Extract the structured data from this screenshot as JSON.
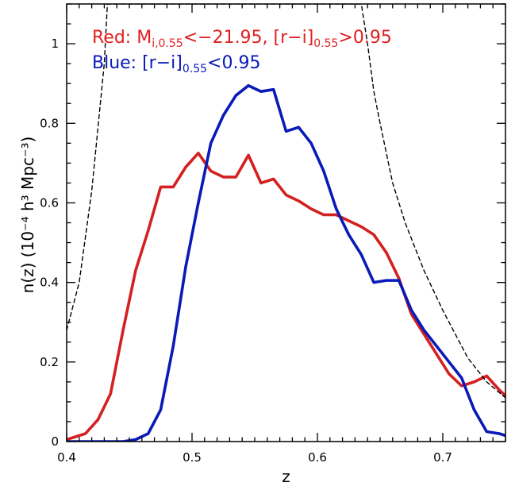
{
  "chart_data": {
    "type": "line",
    "xlabel": "z",
    "ylabel": "n(z) (10⁻⁴ h³ Mpc⁻³)",
    "xlim": [
      0.4,
      0.75
    ],
    "ylim": [
      0,
      1.1
    ],
    "x_ticks": [
      {
        "value": 0.4,
        "label": "0.4"
      },
      {
        "value": 0.5,
        "label": "0.5"
      },
      {
        "value": 0.6,
        "label": "0.6"
      },
      {
        "value": 0.7,
        "label": "0.7"
      }
    ],
    "y_ticks": [
      {
        "value": 0,
        "label": "0"
      },
      {
        "value": 0.2,
        "label": "0.2"
      },
      {
        "value": 0.4,
        "label": "0.4"
      },
      {
        "value": 0.6,
        "label": "0.6"
      },
      {
        "value": 0.8,
        "label": "0.8"
      },
      {
        "value": 1.0,
        "label": "1"
      }
    ],
    "legend": [
      {
        "color": "#e02020",
        "parts": [
          {
            "text": "Red: M",
            "sub": false
          },
          {
            "text": "i,0.55",
            "sub": true
          },
          {
            "text": "<−21.95, [r−i]",
            "sub": false
          },
          {
            "text": "0.55",
            "sub": true
          },
          {
            "text": ">0.95",
            "sub": false
          }
        ]
      },
      {
        "color": "#0a1ab8",
        "parts": [
          {
            "text": "Blue: [r−i]",
            "sub": false
          },
          {
            "text": "0.55",
            "sub": true
          },
          {
            "text": "<0.95",
            "sub": false
          }
        ]
      }
    ],
    "series": [
      {
        "color": "#d42020",
        "style": "solid",
        "x": [
          0.4,
          0.415,
          0.425,
          0.435,
          0.445,
          0.455,
          0.465,
          0.475,
          0.485,
          0.495,
          0.505,
          0.515,
          0.525,
          0.535,
          0.545,
          0.555,
          0.565,
          0.575,
          0.585,
          0.595,
          0.605,
          0.615,
          0.625,
          0.635,
          0.645,
          0.655,
          0.665,
          0.675,
          0.685,
          0.695,
          0.705,
          0.715,
          0.725,
          0.735,
          0.745,
          0.75
        ],
        "y": [
          0.005,
          0.02,
          0.055,
          0.12,
          0.28,
          0.43,
          0.53,
          0.64,
          0.64,
          0.69,
          0.725,
          0.68,
          0.665,
          0.665,
          0.72,
          0.65,
          0.66,
          0.62,
          0.605,
          0.585,
          0.57,
          0.57,
          0.555,
          0.54,
          0.52,
          0.475,
          0.41,
          0.32,
          0.27,
          0.22,
          0.17,
          0.14,
          0.15,
          0.165,
          0.13,
          0.115
        ]
      },
      {
        "color": "#0a1ab8",
        "style": "solid",
        "x": [
          0.4,
          0.415,
          0.425,
          0.435,
          0.445,
          0.455,
          0.465,
          0.475,
          0.485,
          0.495,
          0.505,
          0.515,
          0.525,
          0.535,
          0.545,
          0.555,
          0.565,
          0.575,
          0.585,
          0.595,
          0.605,
          0.615,
          0.625,
          0.635,
          0.645,
          0.655,
          0.665,
          0.675,
          0.685,
          0.695,
          0.705,
          0.715,
          0.725,
          0.735,
          0.745,
          0.75
        ],
        "y": [
          0.0,
          0.0,
          0.0,
          0.0,
          0.0,
          0.005,
          0.02,
          0.08,
          0.24,
          0.44,
          0.6,
          0.75,
          0.82,
          0.87,
          0.895,
          0.88,
          0.885,
          0.78,
          0.79,
          0.75,
          0.68,
          0.585,
          0.52,
          0.47,
          0.4,
          0.405,
          0.405,
          0.33,
          0.28,
          0.24,
          0.2,
          0.16,
          0.08,
          0.025,
          0.02,
          0.015
        ]
      },
      {
        "color": "#000000",
        "style": "dashed",
        "x": [
          0.4,
          0.41,
          0.42,
          0.43,
          0.4325,
          0.635,
          0.64,
          0.645,
          0.65,
          0.66,
          0.67,
          0.685,
          0.7,
          0.72,
          0.735,
          0.75
        ],
        "y": [
          0.28,
          0.4,
          0.63,
          0.95,
          1.1,
          1.1,
          1.0,
          0.88,
          0.8,
          0.65,
          0.55,
          0.43,
          0.33,
          0.21,
          0.15,
          0.11
        ]
      }
    ]
  }
}
